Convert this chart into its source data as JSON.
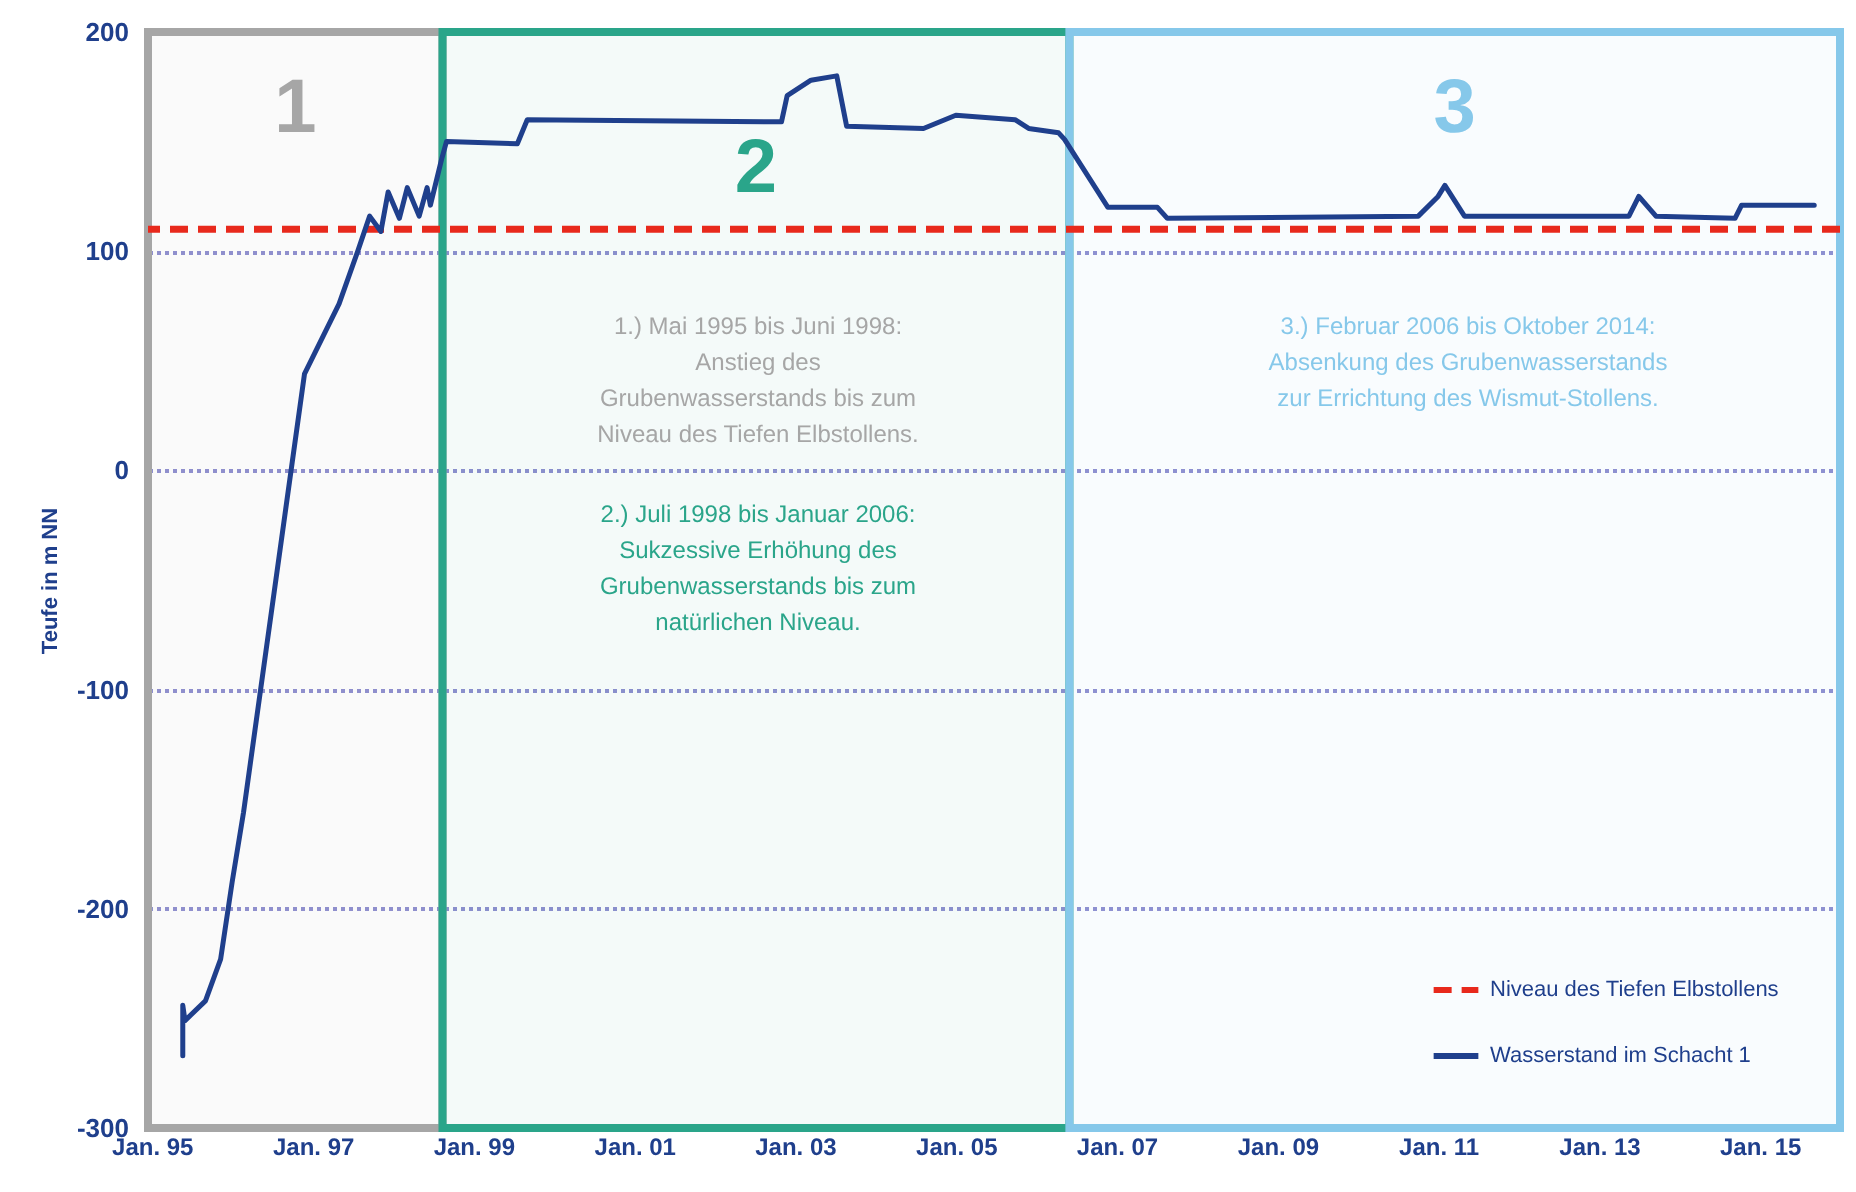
{
  "chart_data": {
    "type": "line",
    "ylabel": "Teufe in m NN",
    "xlim": [
      "1994-12-15",
      "2016-01-01"
    ],
    "xticks": [
      {
        "value": "1995-01-01",
        "label": "Jan. 95"
      },
      {
        "value": "1997-01-01",
        "label": "Jan. 97"
      },
      {
        "value": "1999-01-01",
        "label": "Jan. 99"
      },
      {
        "value": "2001-01-01",
        "label": "Jan. 01"
      },
      {
        "value": "2003-01-01",
        "label": "Jan. 03"
      },
      {
        "value": "2005-01-01",
        "label": "Jan. 05"
      },
      {
        "value": "2007-01-01",
        "label": "Jan. 07"
      },
      {
        "value": "2009-01-01",
        "label": "Jan. 09"
      },
      {
        "value": "2011-01-01",
        "label": "Jan. 11"
      },
      {
        "value": "2013-01-01",
        "label": "Jan. 13"
      },
      {
        "value": "2015-01-01",
        "label": "Jan. 15"
      }
    ],
    "ylim": [
      -300,
      200
    ],
    "yticks": [
      -300,
      -200,
      -100,
      0,
      100,
      200
    ],
    "grid": "y",
    "legend": "bottom right",
    "series": [
      {
        "name": "Wasserstand im Schacht 1",
        "color": "#1f3f8c",
        "x": [
          "1995-05-22",
          "1995-05-22",
          "1995-06-01",
          "1995-09-02",
          "1995-11-10",
          "1996-01-01",
          "1996-02-22",
          "1996-11-25",
          "1997-05-01",
          "1997-07-25",
          "1997-09-17",
          "1997-11-07",
          "1997-12-10",
          "1998-01-30",
          "1998-03-07",
          "1998-04-30",
          "1998-06-05",
          "1998-06-20",
          "1998-08-10",
          "1998-09-01",
          "1999-07-20",
          "1999-09-03",
          "2002-11-01",
          "2002-11-27",
          "2003-03-15",
          "2003-07-10",
          "2003-08-24",
          "2004-08-07",
          "2005-01-01",
          "2005-09-27",
          "2005-11-28",
          "2006-04-13",
          "2006-05-10",
          "2006-11-23",
          "2007-07-06",
          "2007-08-20",
          "2010-10-03",
          "2011-01-01",
          "2011-02-01",
          "2011-05-01",
          "2013-05-17",
          "2013-07-01",
          "2013-09-17",
          "2014-09-11",
          "2014-10-11",
          "2015-09-06"
        ],
        "values": [
          -267,
          -244,
          -251,
          -242,
          -223,
          -188,
          -156,
          44,
          76,
          100,
          116,
          109,
          127,
          115,
          129,
          116,
          129,
          121,
          142,
          150,
          149,
          160,
          159,
          171,
          178,
          180,
          157,
          156,
          162,
          160,
          156,
          154,
          151,
          120,
          120,
          115,
          116,
          125,
          130,
          116,
          116,
          125,
          116,
          115,
          121,
          121
        ]
      }
    ],
    "ref_lines": [
      {
        "axis": "y",
        "value": 110,
        "label": "Niveau des Tiefen Elbstollens",
        "color": "#e8291c",
        "line_style": "dashed"
      }
    ],
    "bands": [
      {
        "axis": "x",
        "from": "1994-12-15",
        "to": "1998-08-14",
        "label": "1",
        "color": "#a6a6a6"
      },
      {
        "axis": "x",
        "from": "1998-08-14",
        "to": "2006-06-01",
        "label": "2",
        "color": "#2aa58a"
      },
      {
        "axis": "x",
        "from": "2006-06-01",
        "to": "2016-01-01",
        "label": "3",
        "color": "#86c8ea"
      }
    ],
    "annotations": [
      "1.) Mai 1995 bis Juni 1998:\nAnstieg des\nGrubenwasserstands bis zum\nNiveau des Tiefen Elbstollens.",
      "2.) Juli 1998 bis Januar 2006:\nSukzessive Erhöhung des\nGrubenwasserstands bis zum\nnatürlichen Niveau.",
      "3.) Februar 2006 bis Oktober 2014:\nAbsenkung des Grubenwasserstands\nzur Errichtung des Wismut-Stollens."
    ]
  }
}
